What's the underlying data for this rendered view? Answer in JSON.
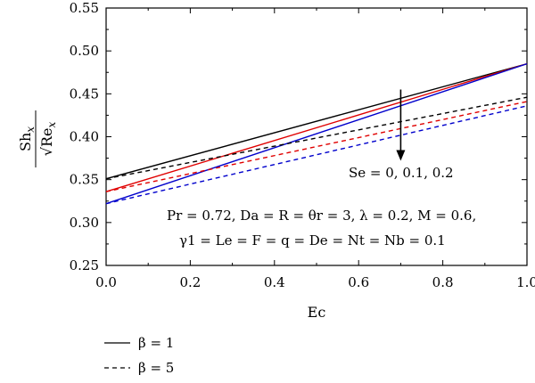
{
  "chart_data": {
    "type": "line",
    "xlabel": "Ec",
    "ylabel": {
      "numerator": "Sh",
      "numerator_sub": "x",
      "denominator": "√Re",
      "denominator_sub": "x"
    },
    "xlim": [
      0,
      1
    ],
    "ylim": [
      0.25,
      0.55
    ],
    "x_ticks": [
      "0.0",
      "0.2",
      "0.4",
      "0.6",
      "0.8",
      "1.0"
    ],
    "y_ticks": [
      "0.25",
      "0.30",
      "0.35",
      "0.40",
      "0.45",
      "0.50",
      "0.55"
    ],
    "grid": false,
    "series": [
      {
        "color": "#000000",
        "style": "solid",
        "x": [
          0,
          1
        ],
        "y": [
          0.351,
          0.485
        ]
      },
      {
        "color": "#e00000",
        "style": "solid",
        "x": [
          0,
          1
        ],
        "y": [
          0.336,
          0.485
        ]
      },
      {
        "color": "#0000cc",
        "style": "solid",
        "x": [
          0,
          1
        ],
        "y": [
          0.322,
          0.485
        ]
      },
      {
        "color": "#000000",
        "style": "dashed",
        "x": [
          0,
          1
        ],
        "y": [
          0.351,
          0.446
        ]
      },
      {
        "color": "#e00000",
        "style": "dashed",
        "x": [
          0,
          1
        ],
        "y": [
          0.336,
          0.441
        ]
      },
      {
        "color": "#0000cc",
        "style": "dashed",
        "x": [
          0,
          1
        ],
        "y": [
          0.322,
          0.436
        ]
      }
    ],
    "arrow": {
      "x": 0.7,
      "y_from": 0.455,
      "y_to": 0.372
    },
    "annotations": {
      "se_label": "Se = 0, 0.1, 0.2",
      "params_line1": "Pr = 0.72, Da = R = θr = 3, λ = 0.2, M = 0.6,",
      "params_line2": "γ1 = Le = F = q = De = Nt = Nb = 0.1"
    },
    "legend": [
      {
        "label": "β = 1",
        "style": "solid",
        "color": "#000000"
      },
      {
        "label": "β = 5",
        "style": "dashed",
        "color": "#000000"
      }
    ],
    "legend_position": "bottom-left, below plot"
  }
}
